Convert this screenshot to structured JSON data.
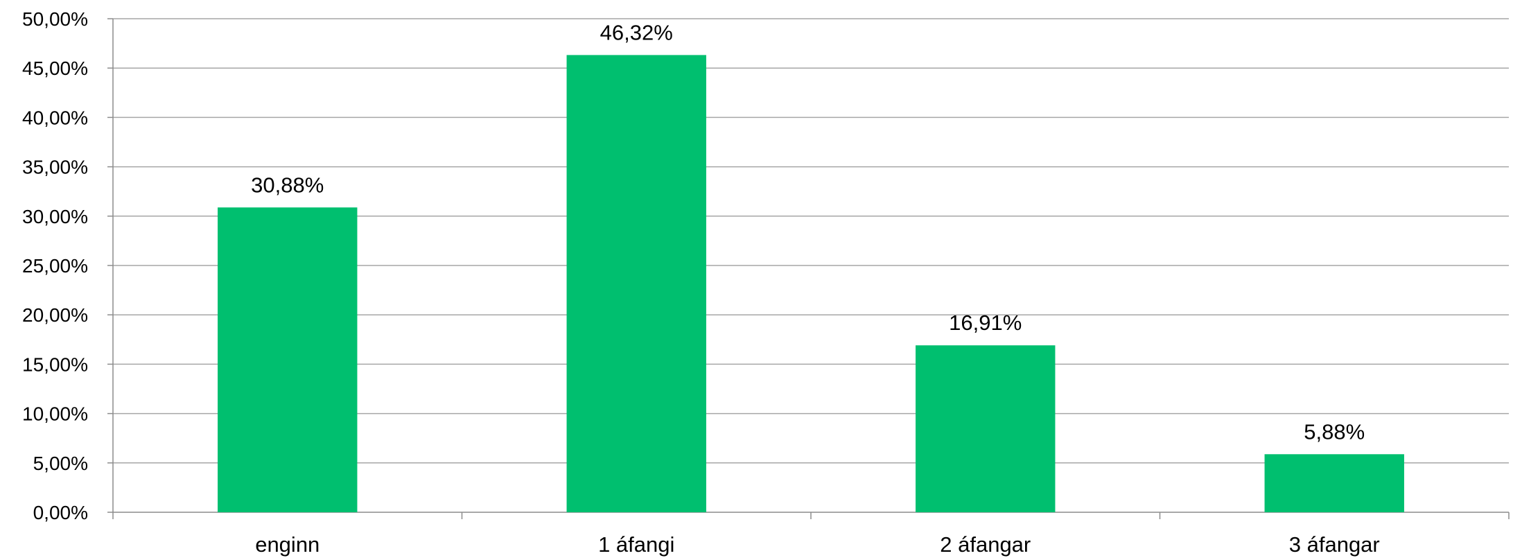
{
  "chart_data": {
    "type": "bar",
    "categories": [
      "enginn",
      "1 áfangi",
      "2 áfangar",
      "3 áfangar"
    ],
    "values": [
      30.88,
      46.32,
      16.91,
      5.88
    ],
    "data_labels": [
      "30,88%",
      "46,32%",
      "16,91%",
      "5,88%"
    ],
    "title": "",
    "xlabel": "",
    "ylabel": "",
    "ylim": [
      0,
      50
    ],
    "y_ticks": [
      0,
      5,
      10,
      15,
      20,
      25,
      30,
      35,
      40,
      45,
      50
    ],
    "y_tick_labels": [
      "0,00%",
      "5,00%",
      "10,00%",
      "15,00%",
      "20,00%",
      "25,00%",
      "30,00%",
      "35,00%",
      "40,00%",
      "45,00%",
      "50,00%"
    ],
    "grid": true,
    "legend": "none",
    "colors": {
      "bar": "#00BF6F",
      "grid": "#A6A6A6",
      "axis": "#8C8C8C"
    }
  }
}
